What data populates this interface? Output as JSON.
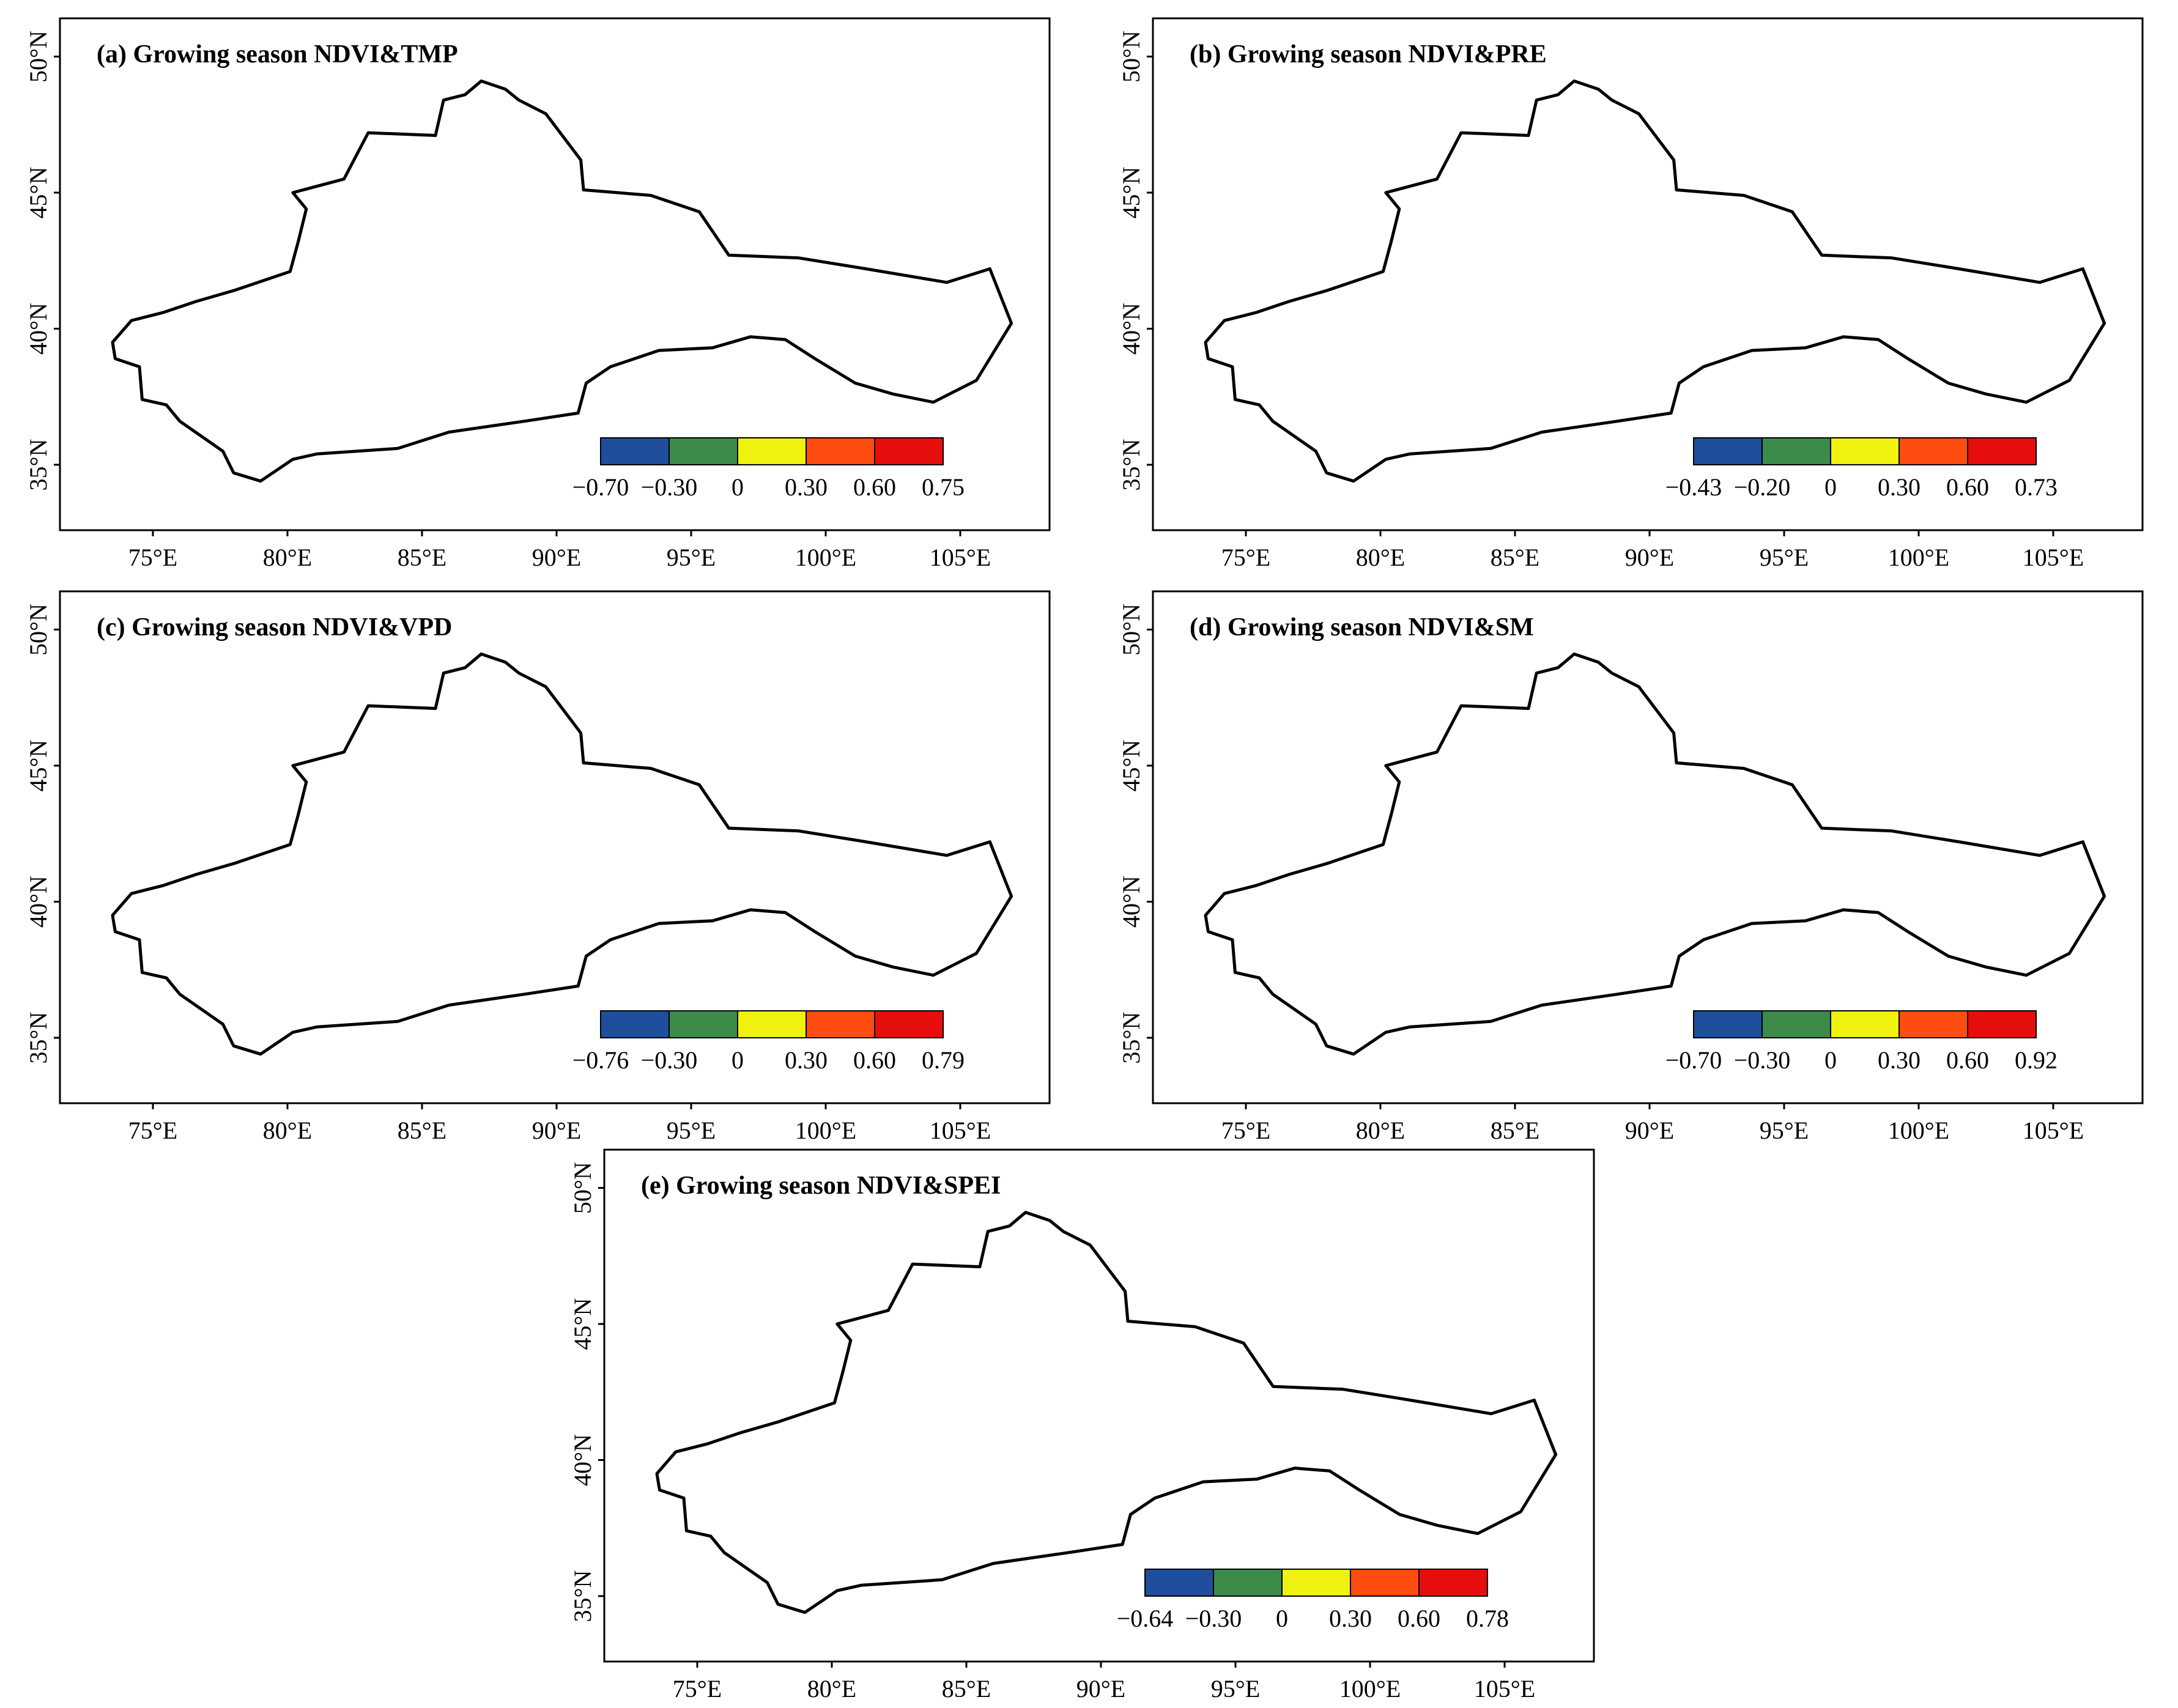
{
  "legend_colors": [
    "#1f4e9c",
    "#3d8b4a",
    "#eef20e",
    "#ff4d12",
    "#e60d0d"
  ],
  "lon_ticks": [
    "75°E",
    "80°E",
    "85°E",
    "90°E",
    "95°E",
    "100°E",
    "105°E"
  ],
  "lat_ticks": [
    "35°N",
    "40°N",
    "45°N",
    "50°N"
  ],
  "panels": [
    {
      "id": "a",
      "title": "(a) Growing season NDVI&TMP",
      "colorbar": [
        "−0.70",
        "−0.30",
        "0",
        "0.30",
        "0.60",
        "0.75"
      ]
    },
    {
      "id": "b",
      "title": "(b) Growing season NDVI&PRE",
      "colorbar": [
        "−0.43",
        "−0.20",
        "0",
        "0.30",
        "0.60",
        "0.73"
      ]
    },
    {
      "id": "c",
      "title": "(c) Growing season NDVI&VPD",
      "colorbar": [
        "−0.76",
        "−0.30",
        "0",
        "0.30",
        "0.60",
        "0.79"
      ]
    },
    {
      "id": "d",
      "title": "(d) Growing season NDVI&SM",
      "colorbar": [
        "−0.70",
        "−0.30",
        "0",
        "0.30",
        "0.60",
        "0.92"
      ]
    },
    {
      "id": "e",
      "title": "(e) Growing season NDVI&SPEI",
      "colorbar": [
        "−0.64",
        "−0.30",
        "0",
        "0.30",
        "0.60",
        "0.78"
      ]
    }
  ]
}
